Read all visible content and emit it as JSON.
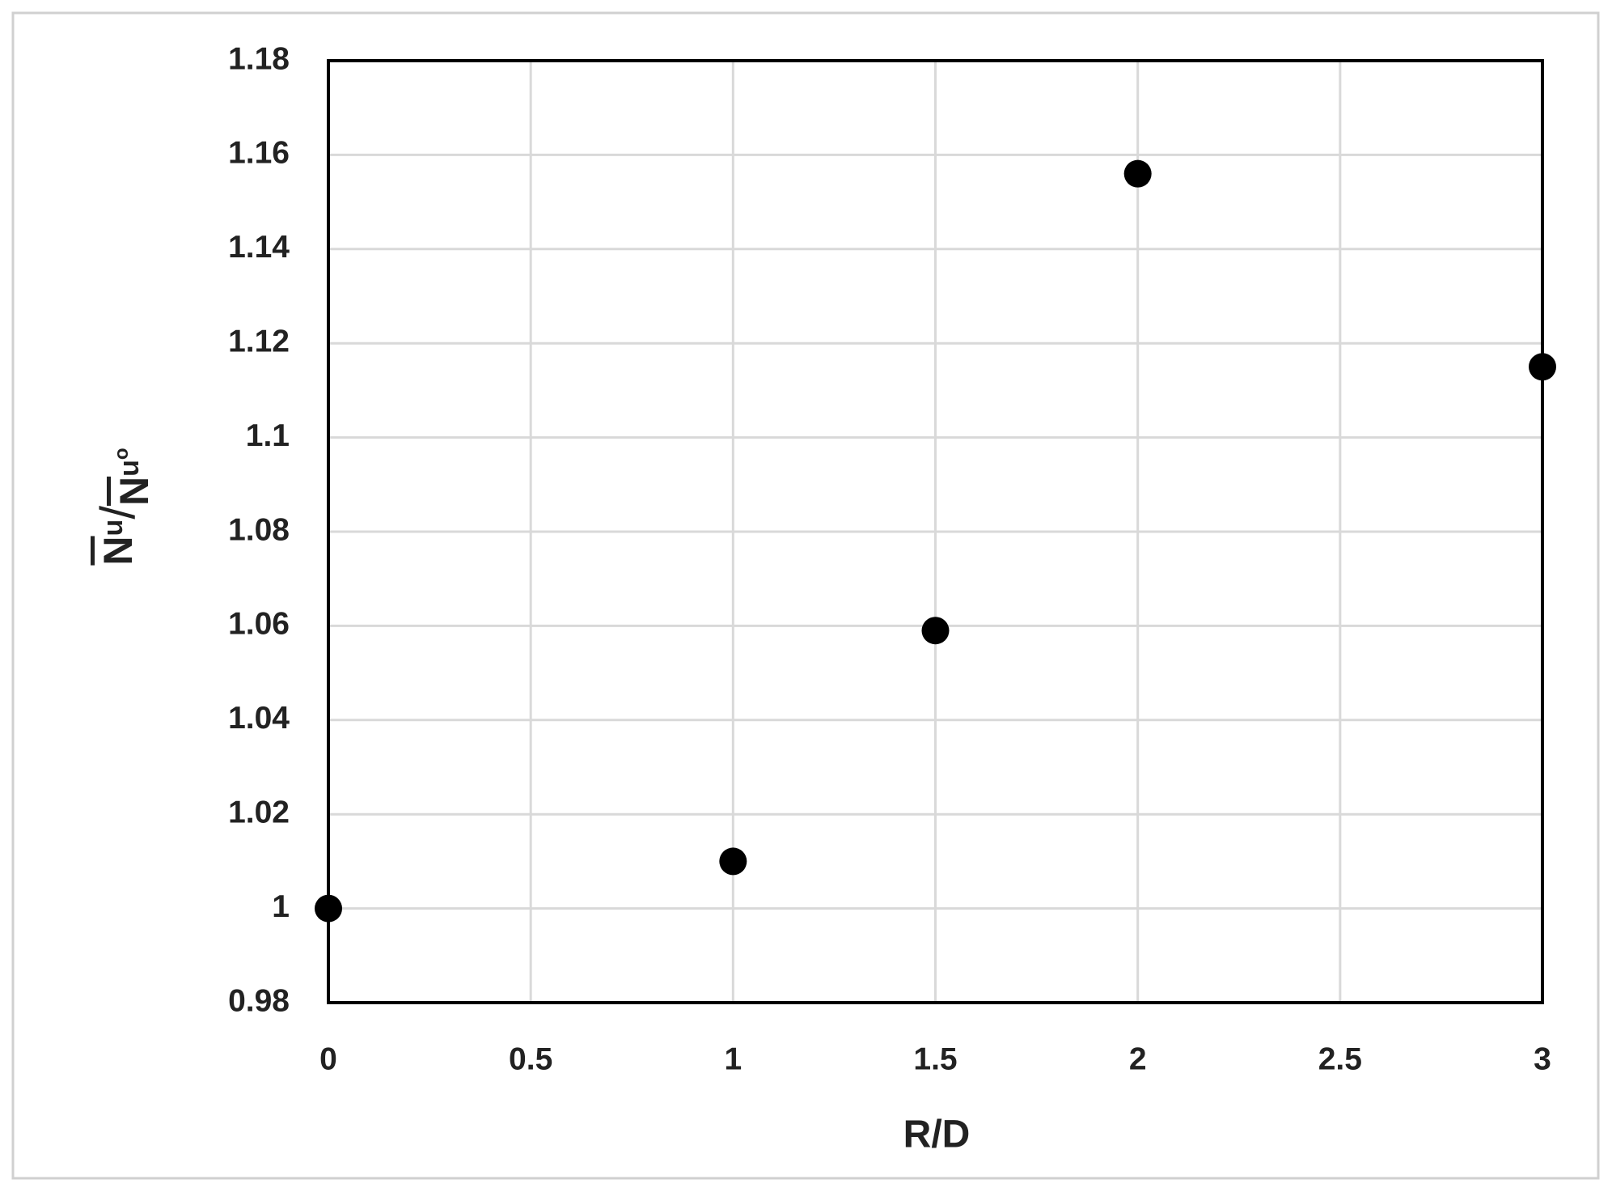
{
  "chart_data": {
    "type": "scatter",
    "xlabel": "R/D",
    "ylabel_parts": [
      "N",
      "u",
      "/",
      "N",
      "u",
      "o"
    ],
    "x": [
      0,
      1,
      1.5,
      2,
      3
    ],
    "values": [
      1.0,
      1.01,
      1.059,
      1.156,
      1.115
    ],
    "color": "#000000",
    "xlim": [
      0,
      3
    ],
    "xticks": [
      0,
      0.5,
      1,
      1.5,
      2,
      2.5,
      3
    ],
    "ylim": [
      0.98,
      1.18
    ],
    "yticks": [
      0.98,
      1,
      1.02,
      1.04,
      1.06,
      1.08,
      1.1,
      1.12,
      1.14,
      1.16,
      1.18
    ],
    "grid": true
  }
}
